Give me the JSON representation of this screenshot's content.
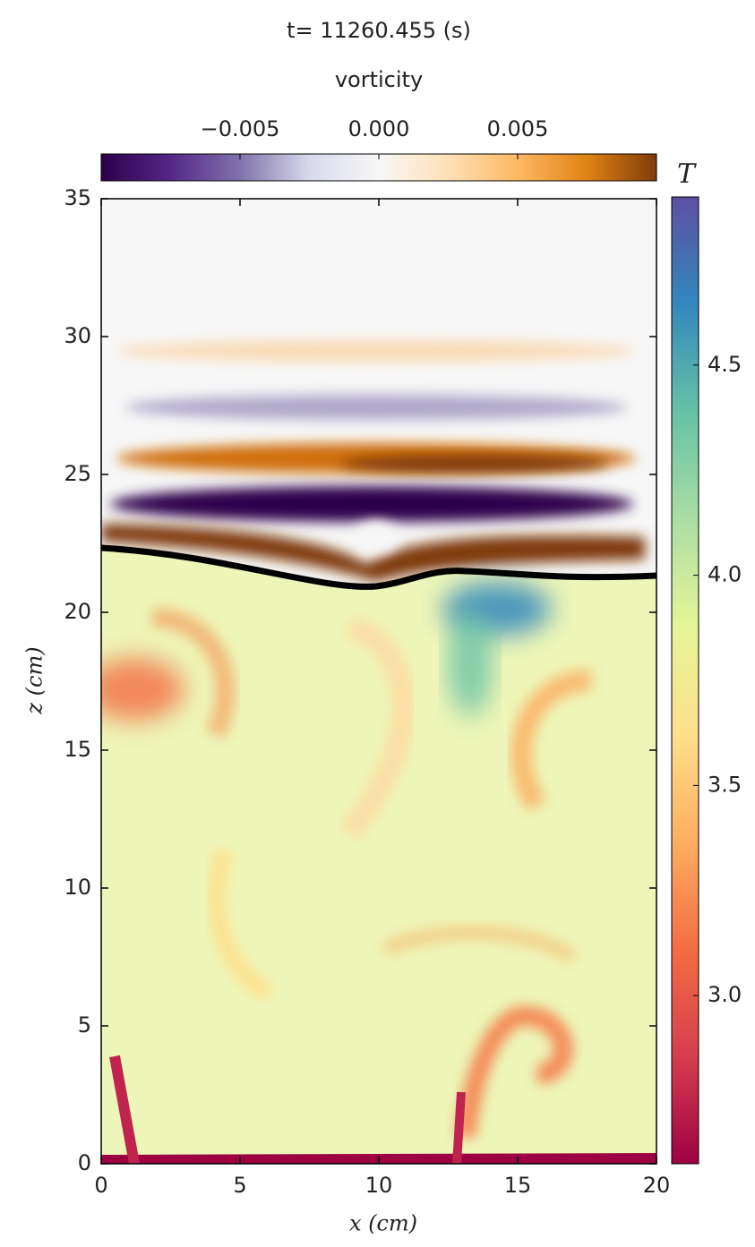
{
  "chart_data": {
    "type": "field",
    "title": "t= 11260.455 (s)",
    "xlabel": "x (cm)",
    "ylabel": "z (cm)",
    "xlim": [
      0,
      20
    ],
    "xticks": [
      0,
      5,
      10,
      15,
      20
    ],
    "ylim": [
      0,
      35
    ],
    "yticks": [
      0,
      5,
      10,
      15,
      20,
      25,
      30,
      35
    ],
    "colorbars": [
      {
        "label": "vorticity",
        "orientation": "horizontal",
        "lim": [
          -0.01,
          0.01
        ],
        "ticks": [
          {
            "value": -0.005,
            "label": "−0.005"
          },
          {
            "value": 0,
            "label": "0.000"
          },
          {
            "value": 0.005,
            "label": "0.005"
          }
        ],
        "colors": [
          "#2d004b",
          "#542788",
          "#8073ac",
          "#d8daeb",
          "#f7f7f7",
          "#fee0b6",
          "#fdb863",
          "#e08214",
          "#7f3b08"
        ]
      },
      {
        "label": "T",
        "orientation": "vertical",
        "lim": [
          2.6,
          4.9
        ],
        "ticks": [
          {
            "value": 3,
            "label": "3.0"
          },
          {
            "value": 3.5,
            "label": "3.5"
          },
          {
            "value": 4,
            "label": "4.0"
          },
          {
            "value": 4.5,
            "label": "4.5"
          }
        ],
        "colors": [
          "#9e0142",
          "#d53e4f",
          "#f46d43",
          "#fdae61",
          "#fee08b",
          "#e6f598",
          "#abdda4",
          "#66c2a5",
          "#3288bd",
          "#5e4fa2"
        ]
      }
    ]
  }
}
